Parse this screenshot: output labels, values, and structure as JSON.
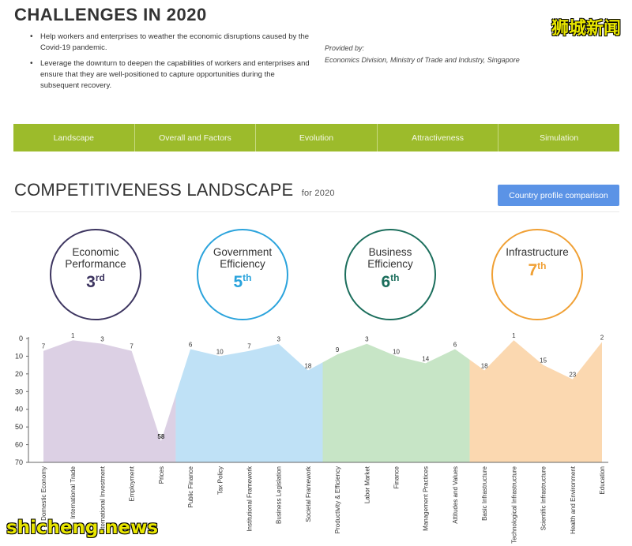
{
  "header": {
    "title": "CHALLENGES IN 2020",
    "bullets": [
      "Help workers and enterprises to weather the economic disruptions caused by the Covid-19 pandemic.",
      "Leverage the downturn to deepen the capabilities of workers and enterprises and ensure that they are well-positioned to capture opportunities during the subsequent recovery."
    ],
    "provided_by_label": "Provided by:",
    "provided_by": "Economics Division, Ministry of Trade and Industry, Singapore"
  },
  "watermarks": {
    "top": "狮城新闻",
    "bottom": "shicheng.news"
  },
  "nav": {
    "tabs": [
      "Landscape",
      "Overall and Factors",
      "Evolution",
      "Attractiveness",
      "Simulation"
    ]
  },
  "section": {
    "title": "COMPETITIVENESS LANDSCAPE",
    "subtitle": "for 2020",
    "profile_button": "Country profile comparison"
  },
  "factors": [
    {
      "label": "Economic\nPerformance",
      "rank": "3",
      "suffix": "rd",
      "color": "#3d3560",
      "border": "#3d3560"
    },
    {
      "label": "Government\nEfficiency",
      "rank": "5",
      "suffix": "th",
      "color": "#2aa3dc",
      "border": "#2aa3dc"
    },
    {
      "label": "Business\nEfficiency",
      "rank": "6",
      "suffix": "th",
      "color": "#1b6e5c",
      "border": "#1b6e5c"
    },
    {
      "label": "Infrastructure",
      "rank": "7",
      "suffix": "th",
      "color": "#f0a034",
      "border": "#f0a034"
    }
  ],
  "chart_data": {
    "type": "area",
    "categories": [
      "Domestic Economy",
      "International Trade",
      "International Investment",
      "Employment",
      "Prices",
      "Public Finance",
      "Tax Policy",
      "Institutional Framework",
      "Business Legislation",
      "Societal Framework",
      "Productivity & Efficiency",
      "Labor Market",
      "Finance",
      "Management Practices",
      "Attitudes and Values",
      "Basic Infrastructure",
      "Technological Infrastructure",
      "Scientific Infrastructure",
      "Health and Environment",
      "Education"
    ],
    "values": [
      7,
      1,
      3,
      7,
      58,
      6,
      10,
      7,
      3,
      18,
      9,
      3,
      10,
      14,
      6,
      18,
      1,
      15,
      23,
      2
    ],
    "y_ticks": [
      0,
      10,
      20,
      30,
      40,
      50,
      60,
      70
    ],
    "ylim": [
      0,
      70
    ],
    "y_inverted": true,
    "grid": false,
    "groups": [
      {
        "name": "Economic Performance",
        "start": 0,
        "end": 4,
        "color": "#dcd0e4"
      },
      {
        "name": "Government Efficiency",
        "start": 5,
        "end": 9,
        "color": "#bfe1f6"
      },
      {
        "name": "Business Efficiency",
        "start": 10,
        "end": 14,
        "color": "#c7e5c6"
      },
      {
        "name": "Infrastructure",
        "start": 15,
        "end": 19,
        "color": "#fbd8b0"
      }
    ]
  }
}
